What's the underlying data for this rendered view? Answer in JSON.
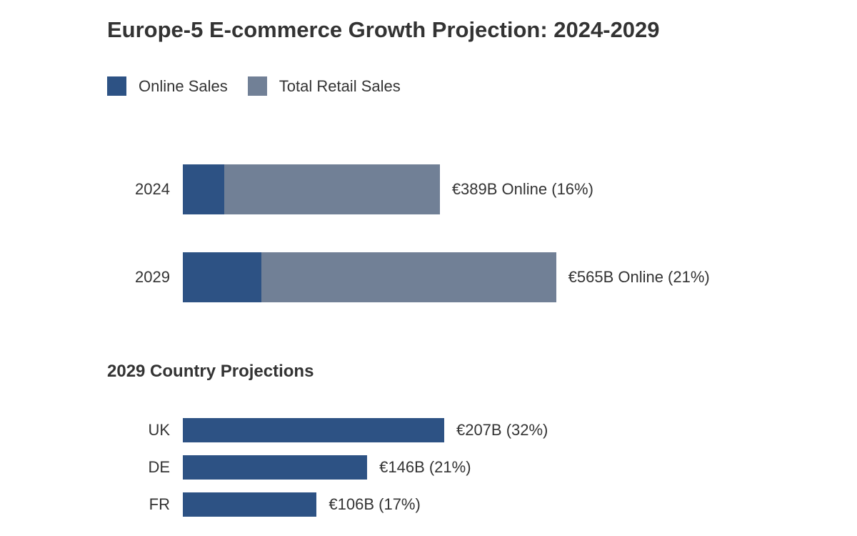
{
  "chart_data": [
    {
      "type": "bar",
      "stacked": true,
      "orientation": "horizontal",
      "title": "Europe-5 E-commerce Growth Projection: 2024-2029",
      "legend": {
        "position": "top-left",
        "entries": [
          "Online Sales",
          "Total Retail Sales"
        ]
      },
      "colors": {
        "online": "#2d5284",
        "total": "#718096"
      },
      "categories": [
        "2024",
        "2029"
      ],
      "online_values_billion_eur": [
        389,
        565
      ],
      "online_share_percent": [
        16,
        21
      ],
      "data_labels": [
        "€389B Online (16%)",
        "€565B Online (21%)"
      ],
      "grid": false
    },
    {
      "type": "bar",
      "orientation": "horizontal",
      "title": "2029 Country Projections",
      "color": "#2d5284",
      "categories": [
        "UK",
        "DE",
        "FR"
      ],
      "values_billion_eur": [
        207,
        146,
        106
      ],
      "share_percent": [
        32,
        21,
        17
      ],
      "data_labels": [
        "€207B (32%)",
        "€146B (21%)",
        "€106B (17%)"
      ],
      "grid": false
    }
  ]
}
